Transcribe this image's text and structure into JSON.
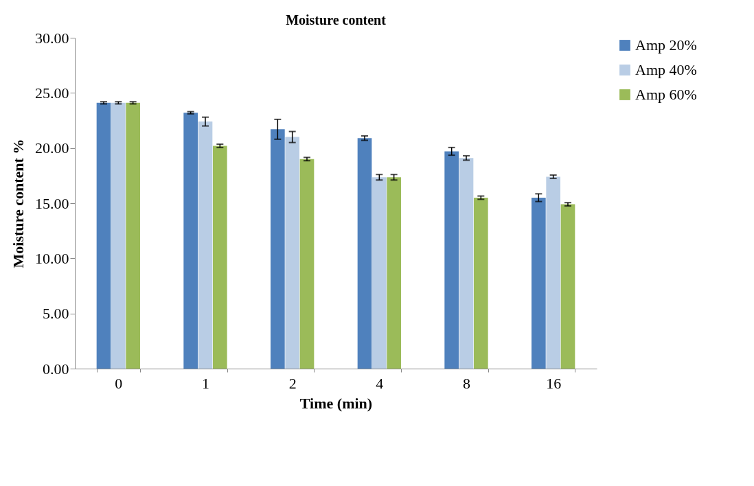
{
  "chart_data": {
    "type": "bar",
    "title": "Moisture content",
    "xlabel": "Time (min)",
    "ylabel": "Moisture content %",
    "categories": [
      "0",
      "1",
      "2",
      "4",
      "8",
      "16"
    ],
    "series": [
      {
        "name": "Amp 20%",
        "color": "#4f81bd",
        "values": [
          24.1,
          23.2,
          21.7,
          20.9,
          19.7,
          15.5
        ],
        "errors": [
          0.1,
          0.1,
          0.9,
          0.2,
          0.35,
          0.35
        ]
      },
      {
        "name": "Amp 40%",
        "color": "#b9cde5",
        "values": [
          24.1,
          22.4,
          21.0,
          17.35,
          19.1,
          17.4
        ],
        "errors": [
          0.1,
          0.4,
          0.5,
          0.25,
          0.2,
          0.15
        ]
      },
      {
        "name": "Amp 60%",
        "color": "#9bbb59",
        "values": [
          24.1,
          20.2,
          19.0,
          17.35,
          15.5,
          14.9
        ],
        "errors": [
          0.1,
          0.15,
          0.15,
          0.25,
          0.15,
          0.15
        ]
      }
    ],
    "ylim": [
      0,
      30
    ],
    "yticks": [
      {
        "value": 0,
        "label": "0.00"
      },
      {
        "value": 5,
        "label": "5.00"
      },
      {
        "value": 10,
        "label": "10.00"
      },
      {
        "value": 15,
        "label": "15.00"
      },
      {
        "value": 20,
        "label": "20.00"
      },
      {
        "value": 25,
        "label": "25.00"
      },
      {
        "value": 30,
        "label": "30.00"
      }
    ],
    "grid": false,
    "legend": "right"
  }
}
